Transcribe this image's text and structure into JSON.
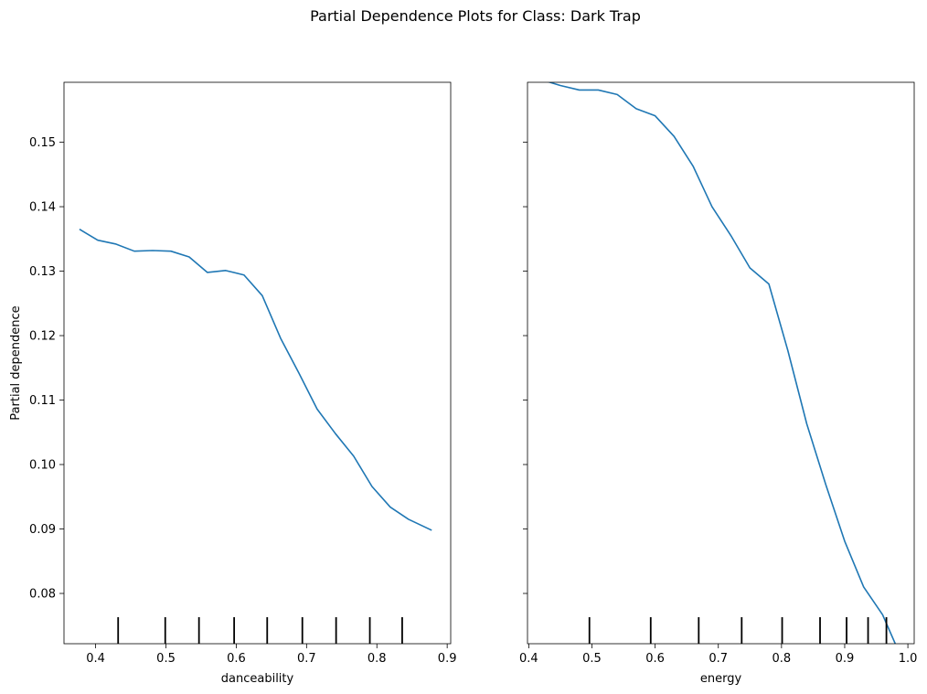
{
  "figure": {
    "suptitle": "Partial Dependence Plots for Class: Dark Trap"
  },
  "chart_data": [
    {
      "type": "line",
      "xlabel": "danceability",
      "ylabel": "Partial dependence",
      "xlim": [
        0.355,
        0.905
      ],
      "ylim": [
        0.0722,
        0.1593
      ],
      "xticks": [
        "0.4",
        "0.5",
        "0.6",
        "0.7",
        "0.8",
        "0.9"
      ],
      "yticks": [
        "0.08",
        "0.09",
        "0.10",
        "0.11",
        "0.12",
        "0.13",
        "0.14",
        "0.15"
      ],
      "series": [
        {
          "x": [
            0.377,
            0.403,
            0.429,
            0.455,
            0.481,
            0.507,
            0.533,
            0.559,
            0.585,
            0.611,
            0.637,
            0.663,
            0.689,
            0.715,
            0.741,
            0.767,
            0.793,
            0.819,
            0.845,
            0.878
          ],
          "y": [
            0.1365,
            0.1348,
            0.1342,
            0.1331,
            0.1332,
            0.1331,
            0.1322,
            0.1298,
            0.1301,
            0.1294,
            0.1262,
            0.1196,
            0.1142,
            0.1086,
            0.1048,
            0.1013,
            0.0966,
            0.0934,
            0.0915,
            0.0898
          ]
        }
      ],
      "deciles": [
        0.432,
        0.499,
        0.547,
        0.597,
        0.644,
        0.694,
        0.742,
        0.79,
        0.836
      ]
    },
    {
      "type": "line",
      "xlabel": "energy",
      "ylabel": "",
      "xlim": [
        0.398,
        1.01
      ],
      "ylim": [
        0.0722,
        0.1593
      ],
      "xticks": [
        "0.4",
        "0.5",
        "0.6",
        "0.7",
        "0.8",
        "0.9",
        "1.0"
      ],
      "yticks": [
        "0.08",
        "0.09",
        "0.10",
        "0.11",
        "0.12",
        "0.13",
        "0.14",
        "0.15"
      ],
      "series": [
        {
          "x": [
            0.42,
            0.45,
            0.48,
            0.51,
            0.54,
            0.57,
            0.6,
            0.63,
            0.66,
            0.69,
            0.72,
            0.75,
            0.78,
            0.81,
            0.84,
            0.87,
            0.9,
            0.93,
            0.96,
            0.98
          ],
          "y": [
            0.1597,
            0.1588,
            0.1581,
            0.1581,
            0.1574,
            0.1552,
            0.1541,
            0.1509,
            0.1463,
            0.14,
            0.1355,
            0.1305,
            0.128,
            0.1177,
            0.1063,
            0.0969,
            0.0881,
            0.081,
            0.0767,
            0.0722
          ]
        }
      ],
      "deciles": [
        0.496,
        0.593,
        0.669,
        0.737,
        0.801,
        0.861,
        0.903,
        0.937,
        0.966
      ]
    }
  ]
}
